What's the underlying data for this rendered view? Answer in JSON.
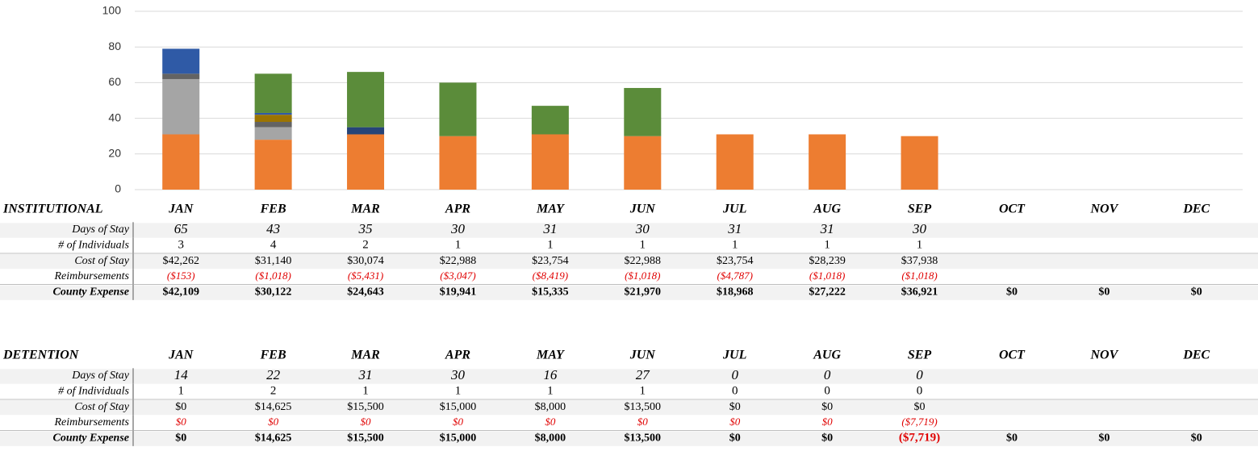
{
  "chart_data": {
    "type": "bar",
    "stacked": true,
    "categories": [
      "JAN",
      "FEB",
      "MAR",
      "APR",
      "MAY",
      "JUN",
      "JUL",
      "AUG",
      "SEP",
      "OCT",
      "NOV",
      "DEC"
    ],
    "series": [
      {
        "color": "#ed7d31",
        "values": [
          31,
          28,
          31,
          30,
          31,
          30,
          31,
          31,
          30,
          null,
          null,
          null
        ]
      },
      {
        "color": "#a5a5a5",
        "values": [
          31,
          7,
          null,
          null,
          null,
          null,
          null,
          null,
          null,
          null,
          null,
          null
        ]
      },
      {
        "color": "#636363",
        "values": [
          3,
          3,
          null,
          null,
          null,
          null,
          null,
          null,
          null,
          null,
          null,
          null
        ]
      },
      {
        "color": "#9c7400",
        "values": [
          null,
          4,
          null,
          null,
          null,
          null,
          null,
          null,
          null,
          null,
          null,
          null
        ]
      },
      {
        "color": "#2f5aa6",
        "values": [
          14,
          1,
          null,
          null,
          null,
          null,
          null,
          null,
          null,
          null,
          null,
          null
        ]
      },
      {
        "color": "#264478",
        "values": [
          null,
          null,
          4,
          null,
          null,
          null,
          null,
          null,
          null,
          null,
          null,
          null
        ]
      },
      {
        "color": "#5b8c3a",
        "values": [
          null,
          22,
          31,
          30,
          16,
          27,
          null,
          null,
          null,
          null,
          null,
          null
        ]
      }
    ],
    "ylim": [
      0,
      100
    ],
    "yticks": [
      0,
      20,
      40,
      60,
      80,
      100
    ],
    "grid": true
  },
  "tables": [
    {
      "title": "INSTITUTIONAL",
      "rows": [
        {
          "label": "Days of Stay",
          "cells": [
            "65",
            "43",
            "35",
            "30",
            "31",
            "30",
            "31",
            "31",
            "30",
            null,
            null,
            null
          ]
        },
        {
          "label": "# of Individuals",
          "cells": [
            "3",
            "4",
            "2",
            "1",
            "1",
            "1",
            "1",
            "1",
            "1",
            null,
            null,
            null
          ]
        },
        {
          "label": "Cost of Stay",
          "cells": [
            "$42,262",
            "$31,140",
            "$30,074",
            "$22,988",
            "$23,754",
            "$22,988",
            "$23,754",
            "$28,239",
            "$37,938",
            null,
            null,
            null
          ]
        },
        {
          "label": "Reimbursements",
          "cells": [
            "($153)",
            "($1,018)",
            "($5,431)",
            "($3,047)",
            "($8,419)",
            "($1,018)",
            "($4,787)",
            "($1,018)",
            "($1,018)",
            null,
            null,
            null
          ]
        },
        {
          "label": "County Expense",
          "cells": [
            "$42,109",
            "$30,122",
            "$24,643",
            "$19,941",
            "$15,335",
            "$21,970",
            "$18,968",
            "$27,222",
            "$36,921",
            "$0",
            "$0",
            "$0"
          ]
        }
      ]
    },
    {
      "title": "DETENTION",
      "months": [
        "JAN",
        "FEB",
        "MAR",
        "APR",
        "MAY",
        "JUN",
        "JUL",
        "AUG",
        "SEP",
        "OCT",
        "NOV",
        "DEC"
      ],
      "rows": [
        {
          "label": "Days of Stay",
          "cells": [
            "14",
            "22",
            "31",
            "30",
            "16",
            "27",
            "0",
            "0",
            "0",
            null,
            null,
            null
          ]
        },
        {
          "label": "# of Individuals",
          "cells": [
            "1",
            "2",
            "1",
            "1",
            "1",
            "1",
            "0",
            "0",
            "0",
            null,
            null,
            null
          ]
        },
        {
          "label": "Cost of Stay",
          "cells": [
            "$0",
            "$14,625",
            "$15,500",
            "$15,000",
            "$8,000",
            "$13,500",
            "$0",
            "$0",
            "$0",
            null,
            null,
            null
          ]
        },
        {
          "label": "Reimbursements",
          "cells": [
            "$0",
            "$0",
            "$0",
            "$0",
            "$0",
            "$0",
            "$0",
            "$0",
            "($7,719)",
            null,
            null,
            null
          ]
        },
        {
          "label": "County Expense",
          "cells": [
            "$0",
            "$14,625",
            "$15,500",
            "$15,000",
            "$8,000",
            "$13,500",
            "$0",
            "$0",
            "($7,719)",
            "$0",
            "$0",
            "$0"
          ]
        }
      ]
    }
  ]
}
